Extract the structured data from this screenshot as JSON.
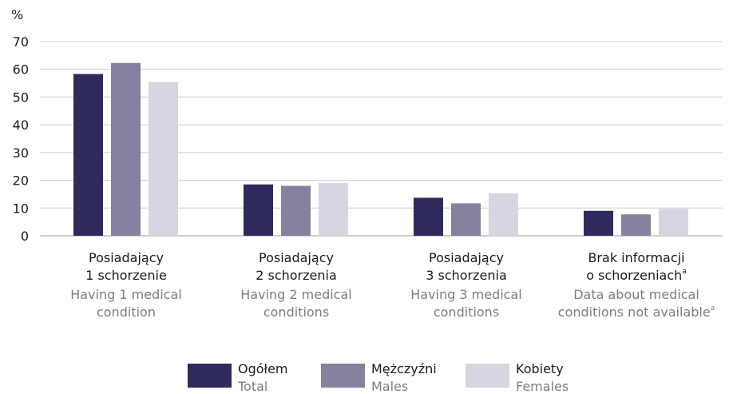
{
  "chart_data": {
    "type": "bar",
    "y_label": "%",
    "categories": [
      {
        "pl": [
          "Posiadający",
          "1 schorzenie"
        ],
        "en": [
          "Having 1 medical",
          "condition"
        ]
      },
      {
        "pl": [
          "Posiadający",
          "2 schorzenia"
        ],
        "en": [
          "Having 2 medical",
          "conditions"
        ]
      },
      {
        "pl": [
          "Posiadający",
          "3 schorzenia"
        ],
        "en": [
          "Having 3 medical",
          "conditions"
        ]
      },
      {
        "pl": [
          "Brak informacji",
          "o schorzeniach"
        ],
        "pl_sup": "a",
        "en": [
          "Data about medical",
          "conditions not available"
        ],
        "en_sup": "a"
      }
    ],
    "series": [
      {
        "name": "Ogółem",
        "name_en": "Total",
        "color": "#2e2a5c",
        "values": [
          58.3,
          18.5,
          13.7,
          9.0
        ]
      },
      {
        "name": "Mężczyźni",
        "name_en": "Males",
        "color": "#84829f",
        "values": [
          62.3,
          18.0,
          11.7,
          7.7
        ]
      },
      {
        "name": "Kobiety",
        "name_en": "Females",
        "color": "#d6d5e1",
        "values": [
          55.4,
          19.0,
          15.3,
          9.7
        ]
      }
    ],
    "ylim": [
      0,
      70
    ],
    "yticks": [
      0,
      10,
      20,
      30,
      40,
      50,
      60,
      70
    ],
    "grid": true
  }
}
